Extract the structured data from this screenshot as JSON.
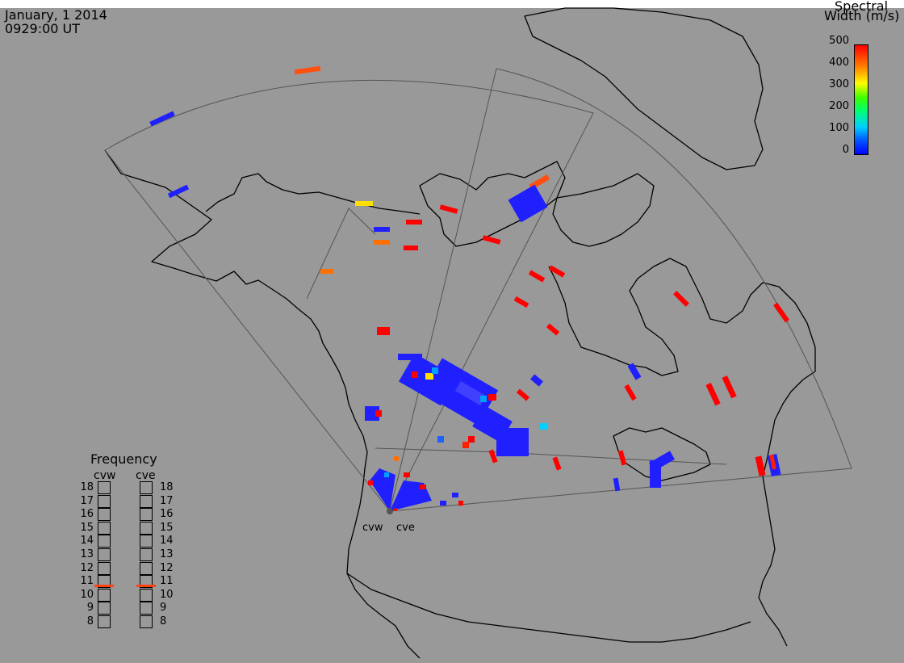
{
  "header": {
    "date": "January, 1 2014",
    "time": "0929:00 UT"
  },
  "colorbar": {
    "title_line1": "Spectral",
    "title_line2": "Width (m/s)",
    "ticks": [
      "500",
      "400",
      "300",
      "200",
      "100",
      "0"
    ],
    "colors": [
      "#0000ff",
      "#0060ff",
      "#00d0ff",
      "#00ff70",
      "#40ff00",
      "#ffff00",
      "#ff8000",
      "#ff0000"
    ]
  },
  "frequency_panel": {
    "title": "Frequency",
    "radars": [
      {
        "name": "cvw",
        "selected": "11"
      },
      {
        "name": "cve",
        "selected": "11"
      }
    ],
    "levels": [
      "18",
      "17",
      "16",
      "15",
      "14",
      "13",
      "12",
      "11",
      "10",
      "9",
      "8"
    ]
  },
  "radar_sites": [
    {
      "name": "cvw"
    },
    {
      "name": "cve"
    }
  ],
  "colors": {
    "background": "#999999",
    "coastline": "#000000",
    "fov_outline": "#555555",
    "marker": "#ff4010"
  }
}
